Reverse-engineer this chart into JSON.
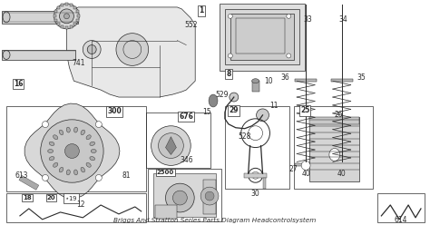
{
  "title": "Briggs And Stratton Series Parts Diagram Headcontrolsystem",
  "bg_color": "#f0f0f0",
  "fig_bg": "#ffffff",
  "fig_width": 4.74,
  "fig_height": 2.48,
  "dpi": 100,
  "label_fontsize": 5.5,
  "label_color": "#111111",
  "lc": "#2a2a2a",
  "lw": 0.5
}
